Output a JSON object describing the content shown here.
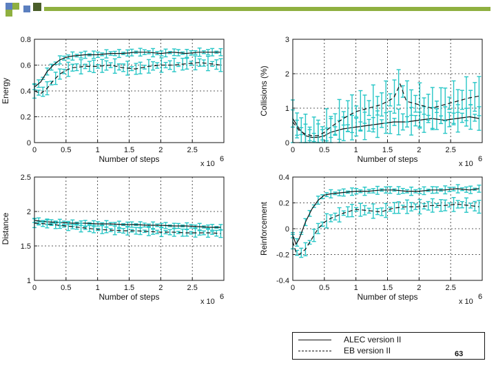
{
  "colors": {
    "deco_green": "#8fb040",
    "deco_blue": "#5b7fbf",
    "deco_dark": "#4a5e2a",
    "errorbar": "#26c6c6",
    "line": "#111111"
  },
  "legend": {
    "alec_label": "ALEC version II",
    "eb_label": "EB version II"
  },
  "page_number": "63",
  "chart_data": [
    {
      "id": "energy",
      "type": "line",
      "title": "",
      "xlabel": "Number of steps",
      "ylabel": "Energy",
      "x_multiplier": "x 10",
      "x_multiplier_exp": "6",
      "xlim": [
        0,
        3
      ],
      "ylim": [
        0,
        0.8
      ],
      "xticks": [
        0,
        0.5,
        1,
        1.5,
        2,
        2.5
      ],
      "xtick_labels": [
        "0",
        "0.5",
        "1",
        "1.5",
        "2",
        "2.5"
      ],
      "yticks": [
        0,
        0.2,
        0.4,
        0.6,
        0.8
      ],
      "ytick_labels": [
        "0",
        "0.2",
        "0.4",
        "0.6",
        "0.8"
      ],
      "grid": true,
      "series": [
        {
          "name": "ALEC version II",
          "style": "solid",
          "x": [
            0,
            0.1,
            0.2,
            0.3,
            0.4,
            0.5,
            0.6,
            0.8,
            1.0,
            1.2,
            1.4,
            1.6,
            1.8,
            2.0,
            2.2,
            2.4,
            2.6,
            2.8,
            2.95
          ],
          "y": [
            0.43,
            0.47,
            0.55,
            0.6,
            0.64,
            0.66,
            0.67,
            0.68,
            0.68,
            0.69,
            0.69,
            0.7,
            0.7,
            0.69,
            0.7,
            0.69,
            0.7,
            0.7,
            0.7
          ],
          "err": 0.02
        },
        {
          "name": "EB version II",
          "style": "dashed",
          "x": [
            0,
            0.1,
            0.2,
            0.3,
            0.4,
            0.5,
            0.6,
            0.8,
            1.0,
            1.2,
            1.4,
            1.6,
            1.8,
            2.0,
            2.2,
            2.4,
            2.6,
            2.8,
            2.95
          ],
          "y": [
            0.4,
            0.38,
            0.42,
            0.48,
            0.53,
            0.56,
            0.58,
            0.59,
            0.59,
            0.6,
            0.58,
            0.57,
            0.59,
            0.6,
            0.6,
            0.61,
            0.62,
            0.61,
            0.6
          ],
          "err": 0.035
        }
      ]
    },
    {
      "id": "collisions",
      "type": "line",
      "title": "",
      "xlabel": "Number of steps",
      "ylabel": "Collisions (%)",
      "x_multiplier": "x 10",
      "x_multiplier_exp": "6",
      "xlim": [
        0,
        3
      ],
      "ylim": [
        0,
        3
      ],
      "xticks": [
        0,
        0.5,
        1,
        1.5,
        2,
        2.5
      ],
      "xtick_labels": [
        "0",
        "0.5",
        "1",
        "1.5",
        "2",
        "2.5"
      ],
      "yticks": [
        0,
        1,
        2,
        3
      ],
      "ytick_labels": [
        "0",
        "1",
        "2",
        "3"
      ],
      "grid": true,
      "series": [
        {
          "name": "ALEC version II",
          "style": "solid",
          "x": [
            0,
            0.1,
            0.2,
            0.3,
            0.4,
            0.5,
            0.6,
            0.8,
            1.0,
            1.2,
            1.4,
            1.6,
            1.8,
            2.0,
            2.2,
            2.4,
            2.6,
            2.8,
            2.95
          ],
          "y": [
            0.7,
            0.4,
            0.2,
            0.15,
            0.15,
            0.2,
            0.3,
            0.4,
            0.45,
            0.5,
            0.55,
            0.6,
            0.6,
            0.65,
            0.7,
            0.65,
            0.7,
            0.75,
            0.7
          ],
          "err": 0.25
        },
        {
          "name": "EB version II",
          "style": "dashed",
          "x": [
            0,
            0.1,
            0.2,
            0.3,
            0.4,
            0.5,
            0.6,
            0.8,
            1.0,
            1.2,
            1.4,
            1.6,
            1.7,
            1.8,
            2.0,
            2.2,
            2.4,
            2.6,
            2.8,
            2.95
          ],
          "y": [
            0.6,
            0.35,
            0.25,
            0.2,
            0.2,
            0.3,
            0.45,
            0.7,
            0.9,
            1.0,
            1.1,
            1.3,
            1.7,
            1.2,
            1.1,
            1.0,
            1.1,
            1.2,
            1.3,
            1.35
          ],
          "err": 0.4
        }
      ]
    },
    {
      "id": "distance",
      "type": "line",
      "title": "",
      "xlabel": "Number of steps",
      "ylabel": "Distance",
      "x_multiplier": "x 10",
      "x_multiplier_exp": "6",
      "xlim": [
        0,
        3
      ],
      "ylim": [
        1,
        2.5
      ],
      "xticks": [
        0,
        0.5,
        1,
        1.5,
        2,
        2.5
      ],
      "xtick_labels": [
        "0",
        "0.5",
        "1",
        "1.5",
        "2",
        "2.5"
      ],
      "yticks": [
        1,
        1.5,
        2,
        2.5
      ],
      "ytick_labels": [
        "1",
        "1.5",
        "2",
        "2.5"
      ],
      "grid": true,
      "series": [
        {
          "name": "ALEC version II",
          "style": "solid",
          "x": [
            0,
            0.2,
            0.4,
            0.6,
            0.8,
            1.0,
            1.2,
            1.4,
            1.6,
            1.8,
            2.0,
            2.2,
            2.4,
            2.6,
            2.8,
            2.95
          ],
          "y": [
            1.87,
            1.85,
            1.84,
            1.83,
            1.83,
            1.82,
            1.82,
            1.81,
            1.81,
            1.8,
            1.8,
            1.79,
            1.79,
            1.78,
            1.77,
            1.77
          ],
          "err": 0.03
        },
        {
          "name": "EB version II",
          "style": "dashed",
          "x": [
            0,
            0.2,
            0.4,
            0.6,
            0.8,
            1.0,
            1.2,
            1.4,
            1.6,
            1.8,
            2.0,
            2.2,
            2.4,
            2.6,
            2.8,
            2.95
          ],
          "y": [
            1.83,
            1.82,
            1.8,
            1.78,
            1.76,
            1.74,
            1.73,
            1.72,
            1.72,
            1.71,
            1.7,
            1.7,
            1.69,
            1.69,
            1.69,
            1.68
          ],
          "err": 0.04
        }
      ]
    },
    {
      "id": "reinforcement",
      "type": "line",
      "title": "",
      "xlabel": "Number of steps",
      "ylabel": "Reinforcement",
      "x_multiplier": "x 10",
      "x_multiplier_exp": "6",
      "xlim": [
        0,
        3
      ],
      "ylim": [
        -0.4,
        0.4
      ],
      "xticks": [
        0,
        0.5,
        1,
        1.5,
        2,
        2.5
      ],
      "xtick_labels": [
        "0",
        "0.5",
        "1",
        "1.5",
        "2",
        "2.5"
      ],
      "yticks": [
        -0.4,
        -0.2,
        0,
        0.2,
        0.4
      ],
      "ytick_labels": [
        "-0.4",
        "-0.2",
        "0",
        "0.2",
        "0.4"
      ],
      "grid": true,
      "series": [
        {
          "name": "ALEC version II",
          "style": "solid",
          "x": [
            0,
            0.05,
            0.1,
            0.2,
            0.3,
            0.4,
            0.5,
            0.6,
            0.8,
            1.0,
            1.2,
            1.4,
            1.6,
            1.8,
            2.0,
            2.2,
            2.4,
            2.6,
            2.8,
            2.95
          ],
          "y": [
            -0.05,
            -0.12,
            -0.08,
            0.05,
            0.15,
            0.22,
            0.26,
            0.27,
            0.28,
            0.29,
            0.29,
            0.3,
            0.3,
            0.29,
            0.29,
            0.3,
            0.3,
            0.31,
            0.3,
            0.31
          ],
          "err": 0.02
        },
        {
          "name": "EB version II",
          "style": "dashed",
          "x": [
            0,
            0.05,
            0.1,
            0.2,
            0.3,
            0.4,
            0.5,
            0.6,
            0.8,
            1.0,
            1.2,
            1.4,
            1.6,
            1.8,
            2.0,
            2.2,
            2.4,
            2.6,
            2.8,
            2.95
          ],
          "y": [
            -0.1,
            -0.18,
            -0.2,
            -0.16,
            -0.08,
            0.0,
            0.05,
            0.08,
            0.12,
            0.15,
            0.14,
            0.13,
            0.16,
            0.17,
            0.17,
            0.18,
            0.18,
            0.19,
            0.18,
            0.17
          ],
          "err": 0.035
        }
      ]
    }
  ]
}
